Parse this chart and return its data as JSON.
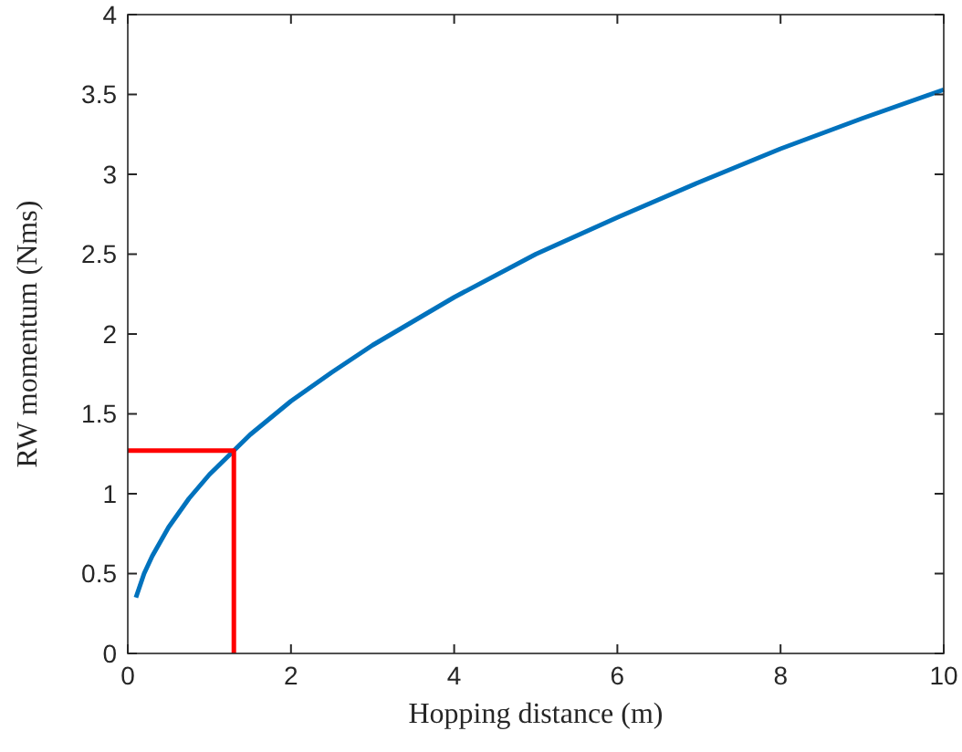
{
  "chart_data": {
    "type": "line",
    "xlabel": "Hopping distance (m)",
    "ylabel": "RW momentum (Nms)",
    "xlim": [
      0,
      10
    ],
    "ylim": [
      0,
      4
    ],
    "xticks": [
      0,
      2,
      4,
      6,
      8,
      10
    ],
    "yticks": [
      0,
      0.5,
      1,
      1.5,
      2,
      2.5,
      3,
      3.5,
      4
    ],
    "line_style": "solid",
    "marker": "none",
    "series": [
      {
        "color": "#0072bd",
        "x": [
          0.1,
          0.2,
          0.3,
          0.5,
          0.75,
          1,
          1.3,
          1.5,
          2,
          2.5,
          3,
          4,
          5,
          6,
          7,
          8,
          9,
          10
        ],
        "values": [
          0.35,
          0.5,
          0.61,
          0.79,
          0.97,
          1.12,
          1.27,
          1.37,
          1.58,
          1.76,
          1.93,
          2.23,
          2.5,
          2.73,
          2.95,
          3.16,
          3.35,
          3.53
        ]
      },
      {
        "color": "#ff0000",
        "x": [
          0,
          1.3,
          1.3
        ],
        "values": [
          1.27,
          1.27,
          0
        ]
      }
    ]
  }
}
